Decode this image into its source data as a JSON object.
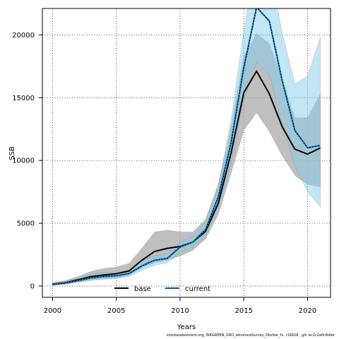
{
  "chart_data": {
    "type": "line",
    "xlabel": "Years",
    "ylabel": "SSB",
    "xlim": [
      1999.2,
      2021.8
    ],
    "ylim": [
      -900,
      22100
    ],
    "x_ticks": [
      2000,
      2005,
      2010,
      2015,
      2020
    ],
    "y_ticks": [
      0,
      5000,
      10000,
      15000,
      20000
    ],
    "grid": true,
    "legend_position": "bottom-center",
    "x": [
      2000,
      2001,
      2002,
      2003,
      2004,
      2005,
      2006,
      2007,
      2008,
      2009,
      2010,
      2011,
      2012,
      2013,
      2014,
      2015,
      2016,
      2017,
      2018,
      2019,
      2020,
      2021
    ],
    "series": [
      {
        "name": "base",
        "color": "#000000",
        "band_color": "#a9a9a9",
        "values": [
          150,
          260,
          500,
          750,
          880,
          980,
          1200,
          2050,
          2750,
          3000,
          3150,
          3500,
          4350,
          6600,
          10600,
          15400,
          17100,
          15300,
          12700,
          10900,
          10500,
          11000
        ],
        "lower": [
          90,
          170,
          320,
          480,
          580,
          640,
          850,
          1450,
          1850,
          2050,
          2400,
          2850,
          3750,
          5700,
          9000,
          12400,
          13800,
          12300,
          10400,
          8800,
          8100,
          7900
        ],
        "upper": [
          280,
          430,
          750,
          1150,
          1400,
          1500,
          1800,
          3000,
          4300,
          4450,
          4300,
          4300,
          5300,
          8100,
          12600,
          18300,
          20100,
          19300,
          16500,
          13400,
          13400,
          15300
        ]
      },
      {
        "name": "current",
        "color": "#1a7cc7",
        "band_color": "#87ceeb",
        "values": [
          120,
          230,
          430,
          650,
          760,
          820,
          1000,
          1600,
          2050,
          2200,
          3100,
          3500,
          4500,
          7100,
          11400,
          17400,
          22200,
          21100,
          16400,
          12400,
          11000,
          11200
        ],
        "lower": [
          70,
          150,
          290,
          450,
          540,
          600,
          760,
          1250,
          1650,
          1850,
          2700,
          3100,
          4000,
          6200,
          9800,
          14800,
          17800,
          16800,
          13000,
          9600,
          7500,
          6300
        ],
        "upper": [
          200,
          360,
          650,
          960,
          1060,
          1100,
          1300,
          1950,
          2450,
          2550,
          3500,
          3950,
          5100,
          8000,
          13200,
          20300,
          26500,
          25500,
          20200,
          16100,
          16700,
          19800
        ]
      }
    ]
  },
  "footer": "stockassessment.org, WKGREEN_GRO_wInshoreSurvey_ObsVar_fv, r16828 , git: ec2c2a0c6dde"
}
